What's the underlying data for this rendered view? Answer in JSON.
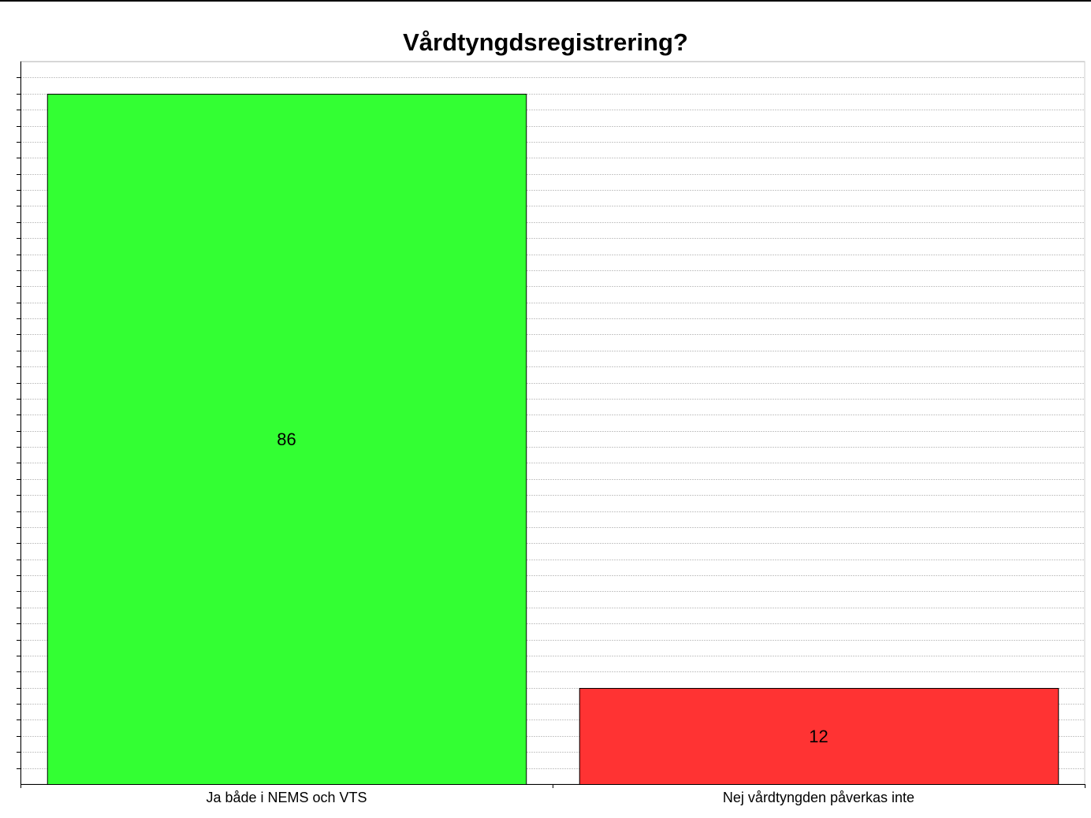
{
  "chart_data": {
    "type": "bar",
    "title": "Vårdtyngdsregistrering?",
    "categories": [
      "Ja både i NEMS och VTS",
      "Nej vårdtyngden påverkas inte"
    ],
    "values": [
      86,
      12
    ],
    "colors": [
      "#33ff33",
      "#ff3333"
    ],
    "data_labels": [
      "86",
      "12"
    ],
    "ylim": [
      0,
      90
    ],
    "grid": true,
    "xlabel": "",
    "ylabel": ""
  }
}
